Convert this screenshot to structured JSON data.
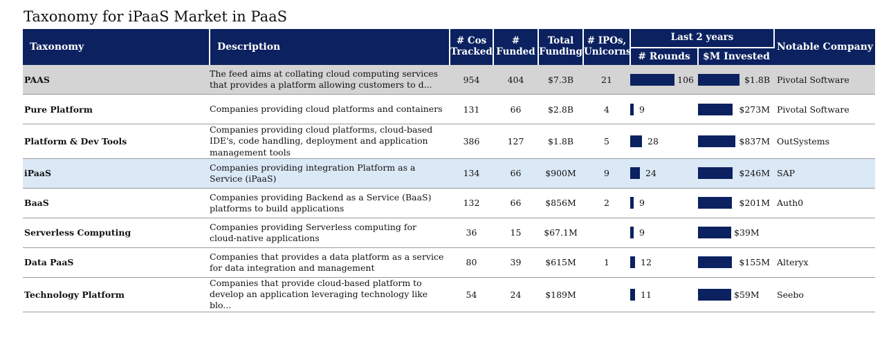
{
  "title": "Taxonomy for iPaaS Market in PaaS",
  "headers": {
    "taxonomy": "Taxonomy",
    "description": "Description",
    "cos_tracked": [
      "# Cos",
      "Tracked"
    ],
    "funded": [
      "#",
      "Funded"
    ],
    "total_funding": [
      "Total",
      "Funding"
    ],
    "ipos_unicorns": [
      "# IPOs,",
      "Unicorns"
    ],
    "last_2_years": "Last 2 years",
    "rounds": "# Rounds",
    "invested": "$M Invested",
    "notable_company": "Notable Company"
  },
  "colors": {
    "header_bg": "#0b2160",
    "bar": "#0b2160",
    "paas_row_bg": "#d4d4d4",
    "ipaas_row_bg": "#dbe8f6"
  },
  "rows": [
    {
      "name": "PAAS",
      "description": "The feed aims at collating cloud computing services that provides a platform allowing customers to d...",
      "cos_tracked": "954",
      "funded": "404",
      "total_funding": "$7.3B",
      "ipos_unicorns": "21",
      "rounds": "106",
      "rounds_value": 106,
      "invested": "$1.8B",
      "invested_value_m": 1800,
      "notable": "Pivotal Software",
      "style": "paas"
    },
    {
      "name": "Pure Platform",
      "description": "Companies providing cloud platforms and containers",
      "cos_tracked": "131",
      "funded": "66",
      "total_funding": "$2.8B",
      "ipos_unicorns": "4",
      "rounds": "9",
      "rounds_value": 9,
      "invested": "$273M",
      "invested_value_m": 273,
      "notable": "Pivotal Software",
      "style": ""
    },
    {
      "name": "Platform & Dev Tools",
      "description": "Companies providing cloud platforms, cloud-based IDE's, code handling, deployment and application management tools",
      "cos_tracked": "386",
      "funded": "127",
      "total_funding": "$1.8B",
      "ipos_unicorns": "5",
      "rounds": "28",
      "rounds_value": 28,
      "invested": "$837M",
      "invested_value_m": 837,
      "notable": "OutSystems",
      "style": ""
    },
    {
      "name": "iPaaS",
      "description": "Companies providing integration Platform as a Service (iPaaS)",
      "cos_tracked": "134",
      "funded": "66",
      "total_funding": "$900M",
      "ipos_unicorns": "9",
      "rounds": "24",
      "rounds_value": 24,
      "invested": "$246M",
      "invested_value_m": 246,
      "notable": "SAP",
      "style": "ipaas"
    },
    {
      "name": "BaaS",
      "description": "Companies providing Backend as a Service (BaaS) platforms to build applications",
      "cos_tracked": "132",
      "funded": "66",
      "total_funding": "$856M",
      "ipos_unicorns": "2",
      "rounds": "9",
      "rounds_value": 9,
      "invested": "$201M",
      "invested_value_m": 201,
      "notable": "Auth0",
      "style": ""
    },
    {
      "name": "Serverless Computing",
      "description": "Companies providing Serverless computing for cloud-native applications",
      "cos_tracked": "36",
      "funded": "15",
      "total_funding": "$67.1M",
      "ipos_unicorns": "",
      "rounds": "9",
      "rounds_value": 9,
      "invested": "$39M",
      "invested_value_m": 39,
      "notable": "",
      "style": ""
    },
    {
      "name": "Data PaaS",
      "description": "Companies that provides a data platform as a service for data integration and management",
      "cos_tracked": "80",
      "funded": "39",
      "total_funding": "$615M",
      "ipos_unicorns": "1",
      "rounds": "12",
      "rounds_value": 12,
      "invested": "$155M",
      "invested_value_m": 155,
      "notable": "Alteryx",
      "style": ""
    },
    {
      "name": "Technology Platform",
      "description": "Companies that provide cloud-based platform to develop an application leveraging technology like blo...",
      "cos_tracked": "54",
      "funded": "24",
      "total_funding": "$189M",
      "ipos_unicorns": "",
      "rounds": "11",
      "rounds_value": 11,
      "invested": "$59M",
      "invested_value_m": 59,
      "notable": "Seebo",
      "style": ""
    }
  ]
}
